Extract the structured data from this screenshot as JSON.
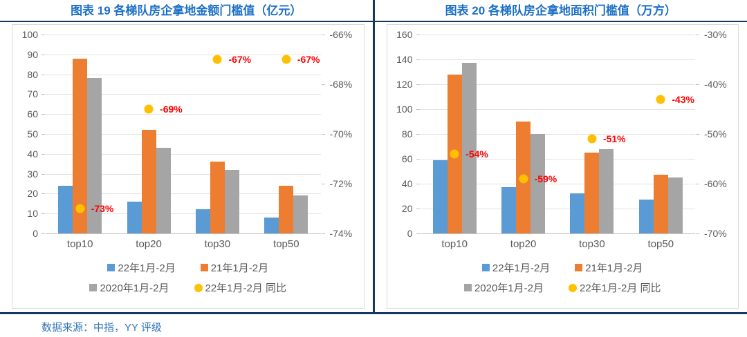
{
  "page": {
    "source_note": "数据来源：中指，YY 评级"
  },
  "colors": {
    "bar_blue": "#5B9BD5",
    "bar_orange": "#ED7D31",
    "bar_gray": "#A5A5A5",
    "dot_yellow": "#FFC000",
    "dot_label_red": "#FF0000",
    "title_blue": "#1C6FC6",
    "rule_navy": "#17375E",
    "axis_text_gray": "#595959",
    "source_blue": "#2E75B6"
  },
  "chart_data": [
    {
      "type": "bar",
      "title": "图表 19 各梯队房企拿地金额门槛值（亿元）",
      "categories": [
        "top10",
        "top20",
        "top30",
        "top50"
      ],
      "series": [
        {
          "key": "y22",
          "name": "22年1月-2月",
          "type": "bar",
          "color": "#5B9BD5",
          "values": [
            24,
            16,
            12,
            8
          ]
        },
        {
          "key": "y21",
          "name": "21年1月-2月",
          "type": "bar",
          "color": "#ED7D31",
          "values": [
            88,
            52,
            36,
            24
          ]
        },
        {
          "key": "y20",
          "name": "2020年1月-2月",
          "type": "bar",
          "color": "#A5A5A5",
          "values": [
            78,
            43,
            32,
            19
          ]
        },
        {
          "key": "yoy",
          "name": "22年1月-2月 同比",
          "type": "point",
          "color": "#FFC000",
          "axis": "right",
          "values": [
            -73,
            -69,
            -67,
            -67
          ],
          "labels": [
            "-73%",
            "-69%",
            "-67%",
            "-67%"
          ]
        }
      ],
      "y_left": {
        "min": 0,
        "max": 100,
        "step": 10
      },
      "y_right": {
        "min": -74,
        "max": -66,
        "step": 2,
        "suffix": "%"
      },
      "grid": true,
      "legend_position": "bottom",
      "point_label_color": "#FF0000"
    },
    {
      "type": "bar",
      "title": "图表 20 各梯队房企拿地面积门槛值（万方）",
      "categories": [
        "top10",
        "top20",
        "top30",
        "top50"
      ],
      "series": [
        {
          "key": "y22",
          "name": "22年1月-2月",
          "type": "bar",
          "color": "#5B9BD5",
          "values": [
            59,
            37,
            32,
            27
          ]
        },
        {
          "key": "y21",
          "name": "21年1月-2月",
          "type": "bar",
          "color": "#ED7D31",
          "values": [
            128,
            90,
            65,
            47
          ]
        },
        {
          "key": "y20",
          "name": "2020年1月-2月",
          "type": "bar",
          "color": "#A5A5A5",
          "values": [
            137,
            80,
            68,
            45
          ]
        },
        {
          "key": "yoy",
          "name": "22年1月-2月 同比",
          "type": "point",
          "color": "#FFC000",
          "axis": "right",
          "values": [
            -54,
            -59,
            -51,
            -43
          ],
          "labels": [
            "-54%",
            "-59%",
            "-51%",
            "-43%"
          ]
        }
      ],
      "y_left": {
        "min": 0,
        "max": 160,
        "step": 20
      },
      "y_right": {
        "min": -70,
        "max": -30,
        "step": 10,
        "suffix": "%"
      },
      "grid": true,
      "legend_position": "bottom",
      "point_label_color": "#FF0000"
    }
  ]
}
